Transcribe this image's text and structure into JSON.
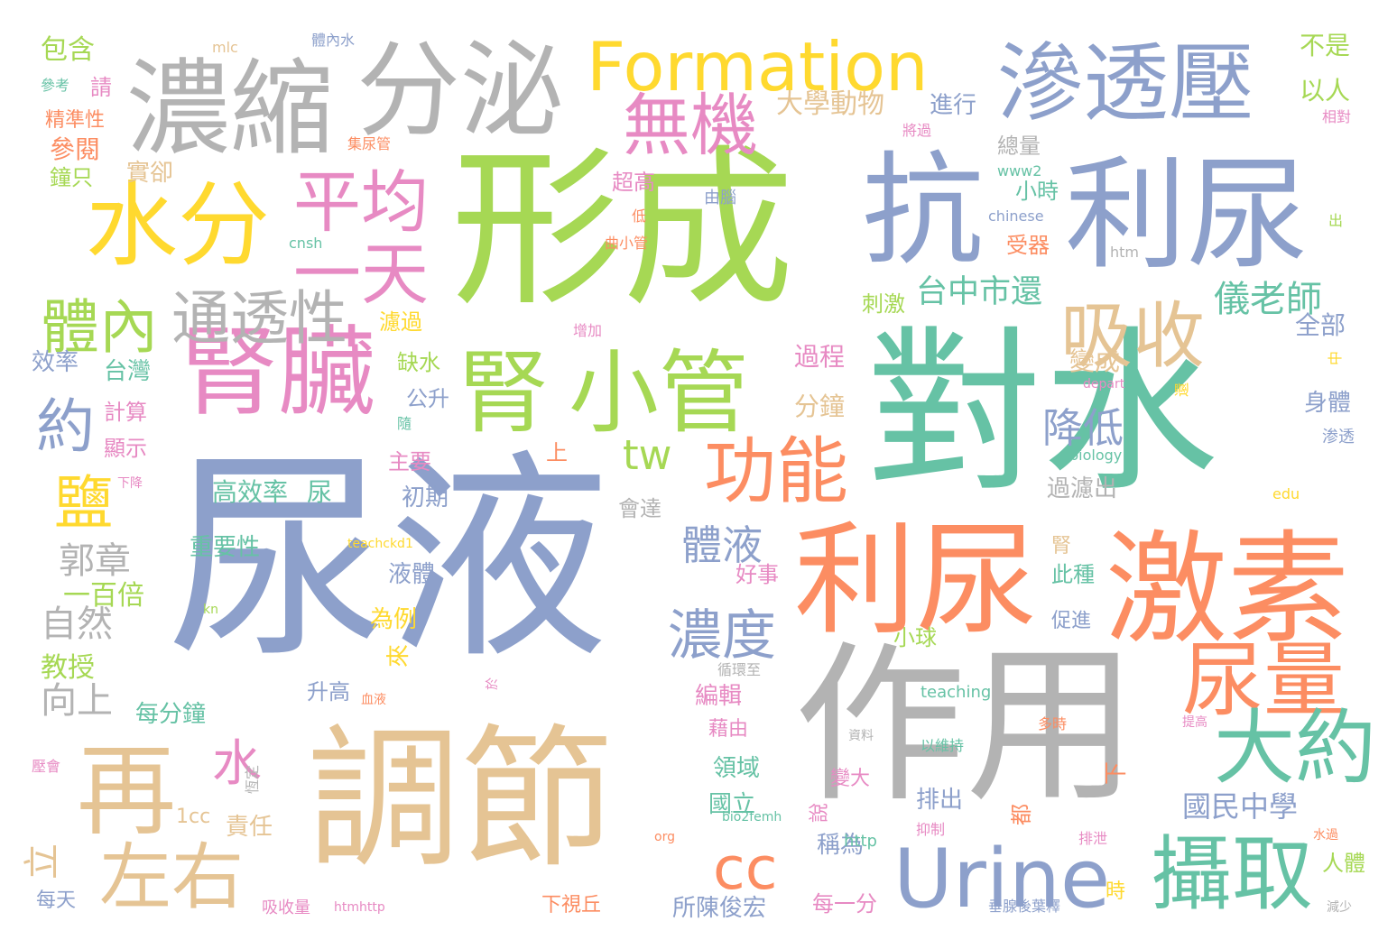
{
  "colors": {
    "blue": "#8da0cb",
    "green": "#a6d854",
    "gray": "#b3b3b3",
    "tan": "#e5c494",
    "yellow": "#ffd92f",
    "pink": "#e78ac3",
    "orange": "#fc8d62",
    "teal": "#66c2a5"
  },
  "words": [
    {
      "text": "尿液",
      "color": "blue"
    },
    {
      "text": "形成",
      "color": "green"
    },
    {
      "text": "對水",
      "color": "teal"
    },
    {
      "text": "作用",
      "color": "gray"
    },
    {
      "text": "調節",
      "color": "tan"
    },
    {
      "text": "抗",
      "color": "blue"
    },
    {
      "text": "利尿",
      "color": "blue"
    },
    {
      "text": "激素",
      "color": "orange"
    },
    {
      "text": "利尿",
      "color": "orange"
    },
    {
      "text": "濃縮",
      "color": "gray"
    },
    {
      "text": "分泌",
      "color": "gray"
    },
    {
      "text": "滲透壓",
      "color": "blue"
    },
    {
      "text": "Formation",
      "color": "yellow"
    },
    {
      "text": "腎臟",
      "color": "pink"
    },
    {
      "text": "水分",
      "color": "yellow"
    },
    {
      "text": "腎",
      "color": "green"
    },
    {
      "text": "小管",
      "color": "green"
    },
    {
      "text": "再",
      "color": "tan"
    },
    {
      "text": "Urine",
      "color": "blue"
    },
    {
      "text": "攝取",
      "color": "teal"
    },
    {
      "text": "尿量",
      "color": "orange"
    },
    {
      "text": "大約",
      "color": "teal"
    },
    {
      "text": "吸收",
      "color": "tan"
    },
    {
      "text": "左右",
      "color": "tan"
    },
    {
      "text": "功能",
      "color": "orange"
    },
    {
      "text": "平均",
      "color": "pink"
    },
    {
      "text": "一天",
      "color": "pink"
    },
    {
      "text": "無機",
      "color": "pink"
    },
    {
      "text": "體內",
      "color": "green"
    },
    {
      "text": "通透性",
      "color": "gray"
    },
    {
      "text": "約",
      "color": "blue"
    },
    {
      "text": "鹽",
      "color": "yellow"
    },
    {
      "text": "cc",
      "color": "orange"
    },
    {
      "text": "tw",
      "color": "green"
    },
    {
      "text": "水",
      "color": "pink"
    },
    {
      "text": "濃度",
      "color": "blue"
    },
    {
      "text": "體液",
      "color": "blue"
    },
    {
      "text": "降低",
      "color": "blue"
    },
    {
      "text": "台中市還",
      "color": "teal"
    },
    {
      "text": "儀老師",
      "color": "teal"
    },
    {
      "text": "大學動物",
      "color": "tan"
    },
    {
      "text": "國民中學",
      "color": "blue"
    },
    {
      "text": "郭章",
      "color": "gray"
    },
    {
      "text": "自然",
      "color": "gray"
    },
    {
      "text": "向上",
      "color": "gray"
    },
    {
      "text": "立",
      "color": "tan"
    },
    {
      "text": "包含",
      "color": "green"
    },
    {
      "text": "請",
      "color": "pink"
    },
    {
      "text": "精準性",
      "color": "orange"
    },
    {
      "text": "參閱",
      "color": "orange"
    },
    {
      "text": "鐘只",
      "color": "green"
    },
    {
      "text": "實卻",
      "color": "tan"
    },
    {
      "text": "集尿管",
      "color": "orange"
    },
    {
      "text": "參考",
      "color": "teal"
    },
    {
      "text": "mlc",
      "color": "tan"
    },
    {
      "text": "體內水",
      "color": "blue"
    },
    {
      "text": "進行",
      "color": "blue"
    },
    {
      "text": "不是",
      "color": "green"
    },
    {
      "text": "以人",
      "color": "green"
    },
    {
      "text": "相對",
      "color": "pink"
    },
    {
      "text": "將過",
      "color": "pink"
    },
    {
      "text": "總量",
      "color": "gray"
    },
    {
      "text": "www2",
      "color": "teal"
    },
    {
      "text": "小時",
      "color": "teal"
    },
    {
      "text": "chinese",
      "color": "blue"
    },
    {
      "text": "受器",
      "color": "orange"
    },
    {
      "text": "htm",
      "color": "gray"
    },
    {
      "text": "出",
      "color": "green"
    },
    {
      "text": "超高",
      "color": "pink"
    },
    {
      "text": "由腦",
      "color": "blue"
    },
    {
      "text": "低",
      "color": "orange"
    },
    {
      "text": "曲小管",
      "color": "orange"
    },
    {
      "text": "cnsh",
      "color": "teal"
    },
    {
      "text": "刺激",
      "color": "green"
    },
    {
      "text": "濾過",
      "color": "yellow"
    },
    {
      "text": "增加",
      "color": "pink"
    },
    {
      "text": "缺水",
      "color": "green"
    },
    {
      "text": "全部",
      "color": "blue"
    },
    {
      "text": "變成",
      "color": "tan"
    },
    {
      "text": "效率",
      "color": "blue"
    },
    {
      "text": "台灣",
      "color": "teal"
    },
    {
      "text": "計算",
      "color": "pink"
    },
    {
      "text": "顯示",
      "color": "pink"
    },
    {
      "text": "過程",
      "color": "pink"
    },
    {
      "text": "分鐘",
      "color": "tan"
    },
    {
      "text": "公升",
      "color": "blue"
    },
    {
      "text": "隨",
      "color": "teal"
    },
    {
      "text": "中",
      "color": "yellow"
    },
    {
      "text": "depart",
      "color": "pink"
    },
    {
      "text": "還",
      "color": "yellow"
    },
    {
      "text": "身體",
      "color": "blue"
    },
    {
      "text": "渗透",
      "color": "blue"
    },
    {
      "text": "主要",
      "color": "pink"
    },
    {
      "text": "上",
      "color": "orange"
    },
    {
      "text": "初期",
      "color": "blue"
    },
    {
      "text": "高效率",
      "color": "teal"
    },
    {
      "text": "尿",
      "color": "teal"
    },
    {
      "text": "下降",
      "color": "pink"
    },
    {
      "text": "biology",
      "color": "teal"
    },
    {
      "text": "過濾出",
      "color": "gray"
    },
    {
      "text": "edu",
      "color": "yellow"
    },
    {
      "text": "會達",
      "color": "gray"
    },
    {
      "text": "重要性",
      "color": "teal"
    },
    {
      "text": "teachckd1",
      "color": "yellow"
    },
    {
      "text": "好事",
      "color": "pink"
    },
    {
      "text": "腎",
      "color": "tan"
    },
    {
      "text": "此種",
      "color": "teal"
    },
    {
      "text": "一百倍",
      "color": "green"
    },
    {
      "text": "液體",
      "color": "blue"
    },
    {
      "text": "為例",
      "color": "yellow"
    },
    {
      "text": "kn",
      "color": "green"
    },
    {
      "text": "促進",
      "color": "blue"
    },
    {
      "text": "小球",
      "color": "green"
    },
    {
      "text": "教授",
      "color": "green"
    },
    {
      "text": "來",
      "color": "yellow"
    },
    {
      "text": "循環至",
      "color": "gray"
    },
    {
      "text": "teaching",
      "color": "teal"
    },
    {
      "text": "編輯",
      "color": "pink"
    },
    {
      "text": "每分鐘",
      "color": "teal"
    },
    {
      "text": "升高",
      "color": "blue"
    },
    {
      "text": "血液",
      "color": "orange"
    },
    {
      "text": "於",
      "color": "pink"
    },
    {
      "text": "藉由",
      "color": "pink"
    },
    {
      "text": "多時",
      "color": "orange"
    },
    {
      "text": "提高",
      "color": "pink"
    },
    {
      "text": "資料",
      "color": "gray"
    },
    {
      "text": "以維持",
      "color": "teal"
    },
    {
      "text": "壓會",
      "color": "pink"
    },
    {
      "text": "領域",
      "color": "teal"
    },
    {
      "text": "下",
      "color": "orange"
    },
    {
      "text": "恆定",
      "color": "gray"
    },
    {
      "text": "變大",
      "color": "pink"
    },
    {
      "text": "1cc",
      "color": "tan"
    },
    {
      "text": "責任",
      "color": "tan"
    },
    {
      "text": "國立",
      "color": "teal"
    },
    {
      "text": "排出",
      "color": "blue"
    },
    {
      "text": "都",
      "color": "orange"
    },
    {
      "text": "bio2femh",
      "color": "teal"
    },
    {
      "text": "抑制",
      "color": "pink"
    },
    {
      "text": "排泄",
      "color": "pink"
    },
    {
      "text": "水過",
      "color": "orange"
    },
    {
      "text": "org",
      "color": "orange"
    },
    {
      "text": "說",
      "color": "pink"
    },
    {
      "text": "稱為",
      "color": "blue"
    },
    {
      "text": "http",
      "color": "teal"
    },
    {
      "text": "人體",
      "color": "green"
    },
    {
      "text": "時",
      "color": "yellow"
    },
    {
      "text": "每天",
      "color": "blue"
    },
    {
      "text": "吸收量",
      "color": "pink"
    },
    {
      "text": "htmhttp",
      "color": "pink"
    },
    {
      "text": "下視丘",
      "color": "orange"
    },
    {
      "text": "所陳俊宏",
      "color": "blue"
    },
    {
      "text": "每一分",
      "color": "pink"
    },
    {
      "text": "垂腺後葉釋",
      "color": "blue"
    },
    {
      "text": "減少",
      "color": "gray"
    }
  ]
}
